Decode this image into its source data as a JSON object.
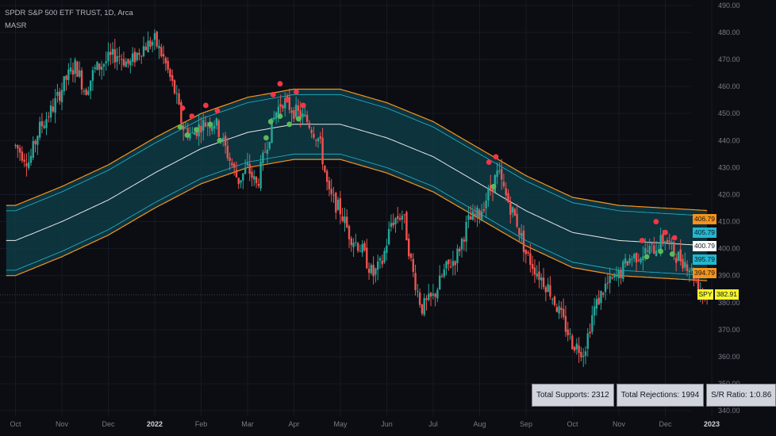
{
  "header": {
    "title": "SPDR S&P 500 ETF TRUST, 1D, Arca",
    "indicator": "MASR"
  },
  "stats": {
    "supports": "Total Supports: 2312",
    "rejections": "Total Rejections: 1994",
    "ratio": "S/R Ratio: 1:0.86"
  },
  "price_tags": {
    "symbol": "SPY",
    "last": "382.91",
    "band_upper_outer": "406.79",
    "band_upper_inner": "405.79",
    "band_mid": "400.79",
    "band_lower_inner": "395.79",
    "band_lower_outer": "394.79"
  },
  "colors": {
    "background": "#0b0d12",
    "up": "#26a69a",
    "down": "#ef5350",
    "band_fill": "#0e3b45",
    "band_inner": "#22b8cf",
    "band_outer": "#f7931a",
    "band_mid": "#e8e8e8",
    "support_dot": "#5cb85c",
    "rejection_dot": "#f23645",
    "last_price_tag": "#f5f52a"
  },
  "chart_data": {
    "type": "candlestick",
    "title": "SPDR S&P 500 ETF TRUST, 1D, Arca",
    "ylim": [
      338,
      492
    ],
    "y_ticks": [
      340,
      350,
      360,
      370,
      380,
      390,
      400,
      410,
      420,
      430,
      440,
      450,
      460,
      470,
      480,
      490
    ],
    "x_ticks": [
      {
        "label": "Oct",
        "month": -3
      },
      {
        "label": "Nov",
        "month": -2
      },
      {
        "label": "Dec",
        "month": -1
      },
      {
        "label": "2022",
        "month": 0
      },
      {
        "label": "Feb",
        "month": 1
      },
      {
        "label": "Mar",
        "month": 2
      },
      {
        "label": "Apr",
        "month": 3
      },
      {
        "label": "May",
        "month": 4
      },
      {
        "label": "Jun",
        "month": 5
      },
      {
        "label": "Jul",
        "month": 6
      },
      {
        "label": "Aug",
        "month": 7
      },
      {
        "label": "Sep",
        "month": 8
      },
      {
        "label": "Oct",
        "month": 9
      },
      {
        "label": "Nov",
        "month": 10
      },
      {
        "label": "Dec",
        "month": 11
      },
      {
        "label": "2023",
        "month": 12
      }
    ],
    "price_path": [
      [
        -3.0,
        438
      ],
      [
        -2.7,
        432
      ],
      [
        -2.5,
        444
      ],
      [
        -2.2,
        452
      ],
      [
        -1.9,
        463
      ],
      [
        -1.7,
        468
      ],
      [
        -1.5,
        458
      ],
      [
        -1.3,
        466
      ],
      [
        -1.0,
        470
      ],
      [
        -0.8,
        472
      ],
      [
        -0.55,
        468
      ],
      [
        -0.3,
        474
      ],
      [
        0.0,
        477
      ],
      [
        0.2,
        470
      ],
      [
        0.45,
        457
      ],
      [
        0.6,
        445
      ],
      [
        0.8,
        442
      ],
      [
        1.0,
        446
      ],
      [
        1.3,
        447
      ],
      [
        1.5,
        438
      ],
      [
        1.8,
        425
      ],
      [
        2.0,
        430
      ],
      [
        2.2,
        423
      ],
      [
        2.4,
        438
      ],
      [
        2.6,
        450
      ],
      [
        2.75,
        455
      ],
      [
        3.0,
        451
      ],
      [
        3.3,
        447
      ],
      [
        3.55,
        440
      ],
      [
        3.75,
        420
      ],
      [
        4.0,
        414
      ],
      [
        4.2,
        405
      ],
      [
        4.45,
        400
      ],
      [
        4.7,
        390
      ],
      [
        4.9,
        395
      ],
      [
        5.1,
        410
      ],
      [
        5.35,
        413
      ],
      [
        5.55,
        392
      ],
      [
        5.75,
        378
      ],
      [
        6.0,
        382
      ],
      [
        6.25,
        392
      ],
      [
        6.5,
        397
      ],
      [
        6.75,
        410
      ],
      [
        7.0,
        413
      ],
      [
        7.25,
        423
      ],
      [
        7.4,
        428
      ],
      [
        7.55,
        420
      ],
      [
        7.8,
        410
      ],
      [
        8.0,
        398
      ],
      [
        8.25,
        391
      ],
      [
        8.5,
        385
      ],
      [
        8.75,
        375
      ],
      [
        9.0,
        365
      ],
      [
        9.25,
        362
      ],
      [
        9.45,
        377
      ],
      [
        9.7,
        386
      ],
      [
        10.0,
        390
      ],
      [
        10.2,
        396
      ],
      [
        10.45,
        398
      ],
      [
        10.75,
        400
      ],
      [
        11.0,
        404
      ],
      [
        11.2,
        398
      ],
      [
        11.5,
        394
      ],
      [
        11.75,
        385
      ],
      [
        11.9,
        382.91
      ]
    ],
    "ma_band": {
      "path": [
        [
          -3.0,
          403
        ],
        [
          -2.0,
          410
        ],
        [
          -1.0,
          418
        ],
        [
          0.0,
          428
        ],
        [
          1.0,
          437
        ],
        [
          2.0,
          443
        ],
        [
          3.0,
          446
        ],
        [
          4.0,
          446
        ],
        [
          5.0,
          441
        ],
        [
          6.0,
          434
        ],
        [
          7.0,
          424
        ],
        [
          8.0,
          414
        ],
        [
          9.0,
          406
        ],
        [
          10.0,
          403
        ],
        [
          11.0,
          402
        ],
        [
          12.0,
          401
        ]
      ],
      "last_values": {
        "upper_outer": 406.79,
        "upper_inner": 405.79,
        "mid": 400.79,
        "lower_inner": 395.79,
        "lower_outer": 394.79
      }
    },
    "support_markers": [
      [
        0.55,
        445
      ],
      [
        0.7,
        442
      ],
      [
        0.9,
        444
      ],
      [
        1.2,
        446
      ],
      [
        1.4,
        440
      ],
      [
        2.5,
        447
      ],
      [
        2.7,
        449
      ],
      [
        2.9,
        446
      ],
      [
        2.4,
        441
      ],
      [
        3.1,
        448
      ],
      [
        7.3,
        423
      ],
      [
        10.6,
        397
      ],
      [
        10.9,
        399
      ],
      [
        11.15,
        398
      ]
    ],
    "rejection_markers": [
      [
        0.6,
        452
      ],
      [
        0.8,
        449
      ],
      [
        1.1,
        453
      ],
      [
        1.35,
        451
      ],
      [
        2.55,
        457
      ],
      [
        2.7,
        461
      ],
      [
        2.85,
        455
      ],
      [
        3.05,
        458
      ],
      [
        3.2,
        453
      ],
      [
        7.2,
        432
      ],
      [
        7.35,
        434
      ],
      [
        10.5,
        403
      ],
      [
        10.8,
        410
      ],
      [
        11.0,
        406
      ],
      [
        11.2,
        404
      ]
    ]
  }
}
